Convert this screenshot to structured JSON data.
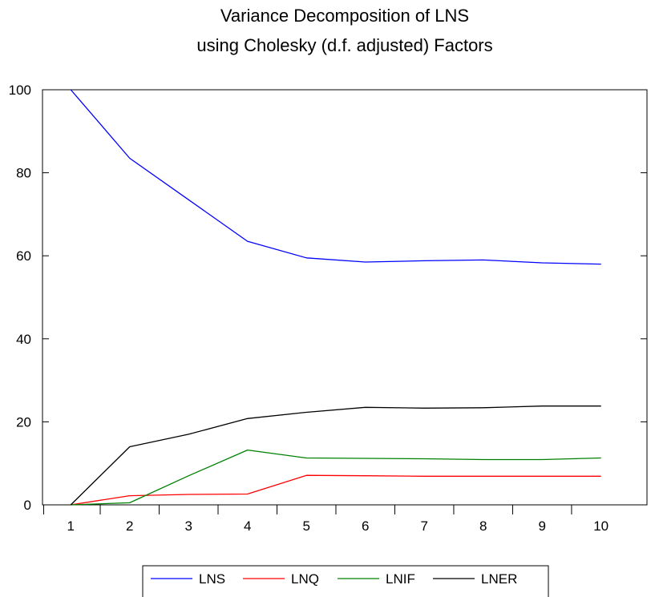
{
  "chart_data": {
    "type": "line",
    "title_line1": "Variance Decomposition of LNS",
    "title_line2": "using Cholesky (d.f. adjusted) Factors",
    "xlabel": "",
    "ylabel": "",
    "x": [
      1,
      2,
      3,
      4,
      5,
      6,
      7,
      8,
      9,
      10
    ],
    "xlim": [
      0.52,
      10.78
    ],
    "ylim": [
      0,
      100
    ],
    "y_ticks": [
      0,
      20,
      40,
      60,
      80,
      100
    ],
    "grid": false,
    "legend_position": "bottom-center",
    "series": [
      {
        "name": "LNS",
        "color": "#0000ff",
        "values": [
          100,
          83.5,
          73.5,
          63.5,
          59.5,
          58.5,
          58.8,
          59.0,
          58.3,
          58.0
        ]
      },
      {
        "name": "LNQ",
        "color": "#ff0000",
        "values": [
          0,
          2.2,
          2.5,
          2.6,
          7.1,
          7.0,
          6.9,
          6.9,
          6.9,
          6.9
        ]
      },
      {
        "name": "LNIF",
        "color": "#008000",
        "values": [
          0,
          0.5,
          7.0,
          13.2,
          11.3,
          11.2,
          11.1,
          10.9,
          10.9,
          11.3
        ]
      },
      {
        "name": "LNER",
        "color": "#000000",
        "values": [
          0,
          14.0,
          17.0,
          20.8,
          22.3,
          23.5,
          23.3,
          23.4,
          23.8,
          23.8
        ]
      }
    ]
  }
}
